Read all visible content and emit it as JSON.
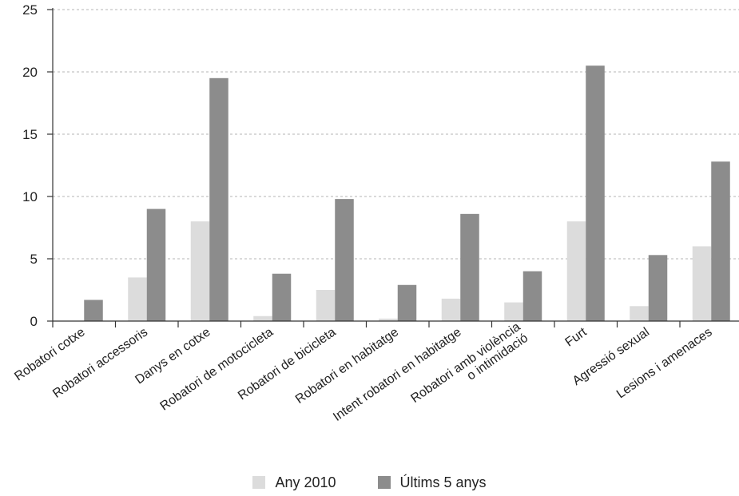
{
  "chart_data": {
    "type": "bar",
    "title": "",
    "xlabel": "",
    "ylabel": "",
    "ylim": [
      0,
      25
    ],
    "yticks": [
      0,
      5,
      10,
      15,
      20,
      25
    ],
    "grid": true,
    "legend_placement": "bottom-center",
    "categories": [
      "Robatori cotxe",
      "Robatori accessoris",
      "Danys en cotxe",
      "Robatori de motocicleta",
      "Robatori de bicicleta",
      "Robatori en habitatge",
      "Intent robatori en habitatge",
      "Robatori amb violència o intimidació",
      "Furt",
      "Agressió sexual",
      "Lesions i amenaces"
    ],
    "series": [
      {
        "name": "Any 2010",
        "color": "#dcdcdc",
        "values": [
          0,
          3.5,
          8.0,
          0.4,
          2.5,
          0.2,
          1.8,
          1.5,
          8.0,
          1.2,
          6.0
        ]
      },
      {
        "name": "Últims 5 anys",
        "color": "#8c8c8c",
        "values": [
          1.7,
          9.0,
          19.5,
          3.8,
          9.8,
          2.9,
          8.6,
          4.0,
          20.5,
          5.3,
          12.8
        ]
      }
    ]
  }
}
